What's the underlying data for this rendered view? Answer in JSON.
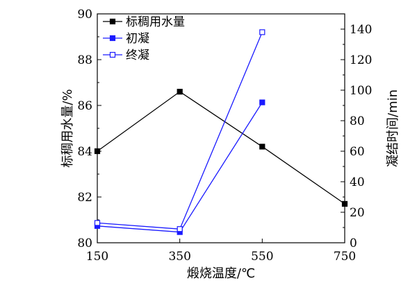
{
  "chart_data": {
    "type": "line",
    "x_label": "煅烧温度/℃",
    "y_left_label": "标稠用水量/%",
    "y_right_label": "凝结时间/min",
    "x_ticks": [
      "150",
      "350",
      "550",
      "750"
    ],
    "x_range": [
      150,
      750
    ],
    "y_left_range": [
      80,
      90
    ],
    "y_left_ticks": [
      "80",
      "82",
      "84",
      "86",
      "88",
      "90"
    ],
    "y_right_range": [
      0,
      150
    ],
    "y_right_ticks": [
      "0",
      "20",
      "40",
      "60",
      "80",
      "100",
      "120",
      "140"
    ],
    "legend_position": "top-left",
    "series": [
      {
        "name": "标稠用水量",
        "axis": "left",
        "color": "#000000",
        "marker": "filled-square",
        "x": [
          150,
          350,
          550,
          750
        ],
        "y": [
          84.0,
          86.6,
          84.2,
          81.7
        ]
      },
      {
        "name": "初凝",
        "axis": "right",
        "color": "#1a1aff",
        "marker": "filled-square",
        "x": [
          150,
          350,
          550
        ],
        "y": [
          11,
          7,
          92
        ]
      },
      {
        "name": "终凝",
        "axis": "right",
        "color": "#1a1aff",
        "marker": "open-square",
        "x": [
          150,
          350,
          550
        ],
        "y": [
          13,
          9,
          138
        ]
      }
    ]
  }
}
